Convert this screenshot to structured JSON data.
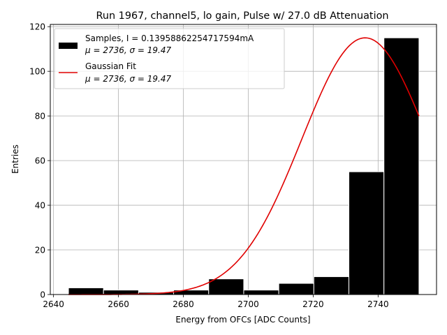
{
  "chart_data": {
    "type": "bar",
    "title": "Run 1967, channel5, lo gain, Pulse w/ 27.0 dB Attenuation",
    "xlabel": "Energy from OFCs [ADC Counts]",
    "ylabel": "Entries",
    "xlim": [
      2639,
      2758
    ],
    "ylim": [
      0,
      121
    ],
    "xticks": [
      2640,
      2660,
      2680,
      2700,
      2720,
      2740
    ],
    "yticks": [
      0,
      20,
      40,
      60,
      80,
      100,
      120
    ],
    "grid": true,
    "legend_position": "top-left",
    "bin_width": 10.8,
    "bars": [
      {
        "x0": 2644.6,
        "x1": 2655.4,
        "value": 3
      },
      {
        "x0": 2655.4,
        "x1": 2666.2,
        "value": 2
      },
      {
        "x0": 2666.2,
        "x1": 2677.0,
        "value": 1
      },
      {
        "x0": 2677.0,
        "x1": 2687.8,
        "value": 2
      },
      {
        "x0": 2687.8,
        "x1": 2698.6,
        "value": 7
      },
      {
        "x0": 2698.6,
        "x1": 2709.4,
        "value": 2
      },
      {
        "x0": 2709.4,
        "x1": 2720.2,
        "value": 5
      },
      {
        "x0": 2720.2,
        "x1": 2731.0,
        "value": 8
      },
      {
        "x0": 2731.0,
        "x1": 2741.8,
        "value": 55
      },
      {
        "x0": 2741.8,
        "x1": 2752.6,
        "value": 115
      }
    ],
    "fit": {
      "type": "gaussian",
      "mu": 2736,
      "sigma": 19.47,
      "amplitude": 115,
      "x_range": [
        2644.6,
        2752.6
      ],
      "color": "#e00000"
    },
    "series": [
      {
        "name": "Samples, I = 0.13958862254717594mA",
        "stats": "μ = 2736, σ = 19.47",
        "color": "#000000",
        "kind": "bar"
      },
      {
        "name": "Gaussian Fit",
        "stats": "μ = 2736, σ = 19.47",
        "color": "#e00000",
        "kind": "line"
      }
    ]
  }
}
